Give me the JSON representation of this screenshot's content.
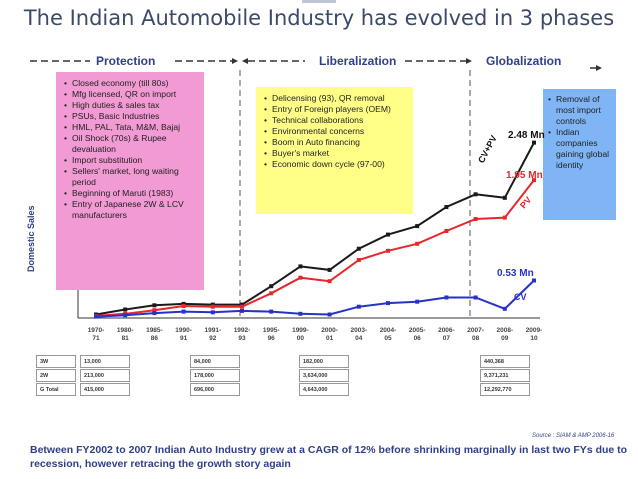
{
  "title": "The Indian Automobile Industry has evolved in 3 phases",
  "phases": {
    "protection": "Protection",
    "liberalization": "Liberalization",
    "globalization": "Globalization"
  },
  "protection_points": [
    "Closed economy (till 80s)",
    "Mfg licensed, QR on import",
    "High duties & sales tax",
    "PSUs, Basic Industries",
    "HML, PAL, Tata, M&M, Bajaj",
    "Oil Shock (70s) & Rupee devaluation",
    "Import substitution",
    "Sellers' market, long waiting period",
    "Beginning of Maruti (1983)",
    "Entry of Japanese 2W & LCV manufacturers"
  ],
  "liberalization_points": [
    "Delicensing (93), QR removal",
    "Entry of Foreign players (OEM)",
    "Technical collaborations",
    "Environmental concerns",
    "Boom in Auto financing",
    "Buyer's market",
    "Economic down cycle (97-00)"
  ],
  "globalization_points": [
    "Removal of most import controls",
    "Indian companies gaining global identity"
  ],
  "chart_data": {
    "type": "line",
    "ylabel": "Domestic Sales",
    "categories": [
      "1970-71",
      "1980-81",
      "1985-86",
      "1990-91",
      "1991-92",
      "1992-93",
      "1995-96",
      "1999-00",
      "2000-01",
      "2003-04",
      "2004-05",
      "2005-06",
      "2006-07",
      "2007-08",
      "2008-09",
      "2009-10"
    ],
    "series": [
      {
        "name": "CV+PV",
        "color": "#1a1a1a",
        "values": [
          0.05,
          0.12,
          0.18,
          0.2,
          0.19,
          0.19,
          0.45,
          0.73,
          0.68,
          0.98,
          1.18,
          1.3,
          1.57,
          1.75,
          1.7,
          2.48
        ]
      },
      {
        "name": "PV",
        "color": "#e8262b",
        "values": [
          0.03,
          0.06,
          0.11,
          0.17,
          0.16,
          0.16,
          0.35,
          0.57,
          0.52,
          0.82,
          0.95,
          1.05,
          1.23,
          1.4,
          1.42,
          1.95
        ]
      },
      {
        "name": "CV",
        "color": "#2633c9",
        "values": [
          0.02,
          0.04,
          0.07,
          0.09,
          0.08,
          0.1,
          0.09,
          0.06,
          0.05,
          0.16,
          0.21,
          0.23,
          0.29,
          0.29,
          0.13,
          0.53
        ]
      }
    ],
    "labels": {
      "cvpv_end": "2.48 Mn",
      "pv_end": "1.95 Mn",
      "cv_end": "0.53 Mn"
    },
    "ylim": [
      0,
      2.8
    ]
  },
  "table": {
    "categories": [
      "3W",
      "2W",
      "G Total"
    ],
    "columns": [
      [
        "13,000",
        "213,000",
        "415,000"
      ],
      [
        "84,000",
        "178,000",
        "696,000"
      ],
      [
        "182,000",
        "3,634,000",
        "4,643,000"
      ],
      [
        "440,368",
        "9,371,231",
        "12,292,770"
      ]
    ]
  },
  "source": "Source : SIAM & AMP 2006-16",
  "footer": "Between FY2002 to 2007 Indian Auto Industry grew at a CAGR of 12% before shrinking marginally in last two FYs due to recession, however retracing the growth story again"
}
